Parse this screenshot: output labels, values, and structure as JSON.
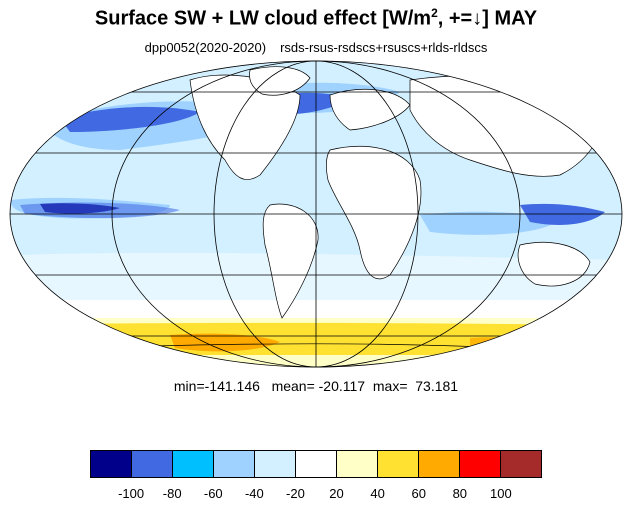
{
  "title": {
    "main": "Surface SW + LW cloud effect [W/m",
    "superscript": "2",
    "after": ", +=↓]  MAY"
  },
  "subtitle": {
    "left": "dpp0052(2020-2020)",
    "right": "rsds-rsus-rsdscs+rsuscs+rlds-rldscs"
  },
  "stats": {
    "text": "min=-141.146   mean= -20.117  max=  73.181"
  },
  "colorbar": {
    "colors": [
      "#00008b",
      "#4169e1",
      "#00bfff",
      "#a0d2ff",
      "#d2f0ff",
      "#ffffff",
      "#ffffc8",
      "#ffe132",
      "#ffaa00",
      "#ff0000",
      "#a52a2a"
    ],
    "labels": [
      "-100",
      "-80",
      "-60",
      "-40",
      "-20",
      "20",
      "40",
      "60",
      "80",
      "100"
    ]
  },
  "map": {
    "projection": "Mollweide",
    "ocean_background": "#d2f0ff",
    "land_color": "#ffffff",
    "coastline_color": "#000000",
    "grid_color": "#000000"
  }
}
